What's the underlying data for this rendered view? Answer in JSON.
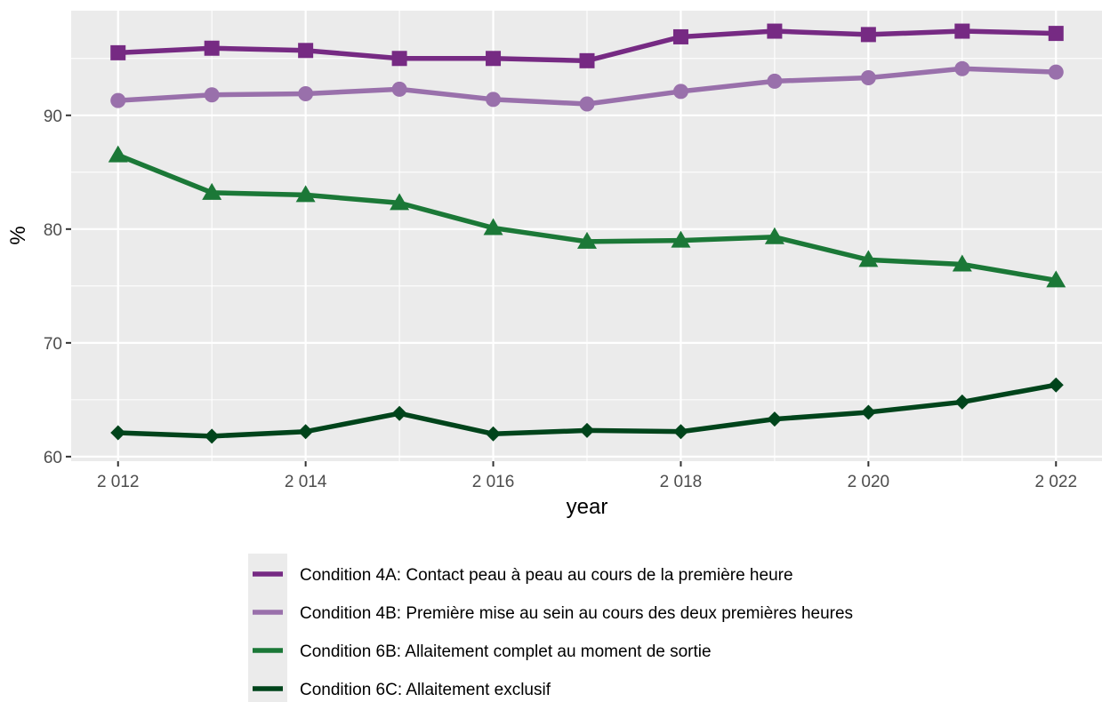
{
  "chart_data": {
    "type": "line",
    "xlabel": "year",
    "ylabel": "%",
    "x": [
      2012,
      2013,
      2014,
      2015,
      2016,
      2017,
      2018,
      2019,
      2020,
      2021,
      2022
    ],
    "x_ticks": [
      2012,
      2014,
      2016,
      2018,
      2020,
      2022
    ],
    "x_tick_labels": [
      "2 012",
      "2 014",
      "2 016",
      "2 018",
      "2 020",
      "2 022"
    ],
    "xlim": [
      2011.5,
      2022.5
    ],
    "y_ticks": [
      60,
      70,
      80,
      90
    ],
    "y_tick_labels": [
      "60",
      "70",
      "80",
      "90"
    ],
    "ylim": [
      59.6,
      99.2
    ],
    "grid": true,
    "legend_position": "bottom",
    "series": [
      {
        "name": "Condition 4A: Contact peau à peau au cours de la première heure",
        "color": "#762a83",
        "marker": "square",
        "values": [
          95.5,
          95.9,
          95.7,
          95.0,
          95.0,
          94.8,
          96.9,
          97.4,
          97.1,
          97.4,
          97.2
        ]
      },
      {
        "name": "Condition 4B: Première mise au sein au cours des deux premières heures",
        "color": "#9970ab",
        "marker": "circle",
        "values": [
          91.3,
          91.8,
          91.9,
          92.3,
          91.4,
          91.0,
          92.1,
          93.0,
          93.3,
          94.1,
          93.8
        ]
      },
      {
        "name": "Condition 6B: Allaitement complet au moment de sortie",
        "color": "#1b7837",
        "marker": "triangle",
        "values": [
          86.5,
          83.2,
          83.0,
          82.3,
          80.1,
          78.9,
          79.0,
          79.3,
          77.3,
          76.9,
          75.5
        ]
      },
      {
        "name": "Condition 6C: Allaitement exclusif",
        "color": "#00441b",
        "marker": "diamond",
        "values": [
          62.1,
          61.8,
          62.2,
          63.8,
          62.0,
          62.3,
          62.2,
          63.3,
          63.9,
          64.8,
          66.3
        ]
      }
    ]
  }
}
